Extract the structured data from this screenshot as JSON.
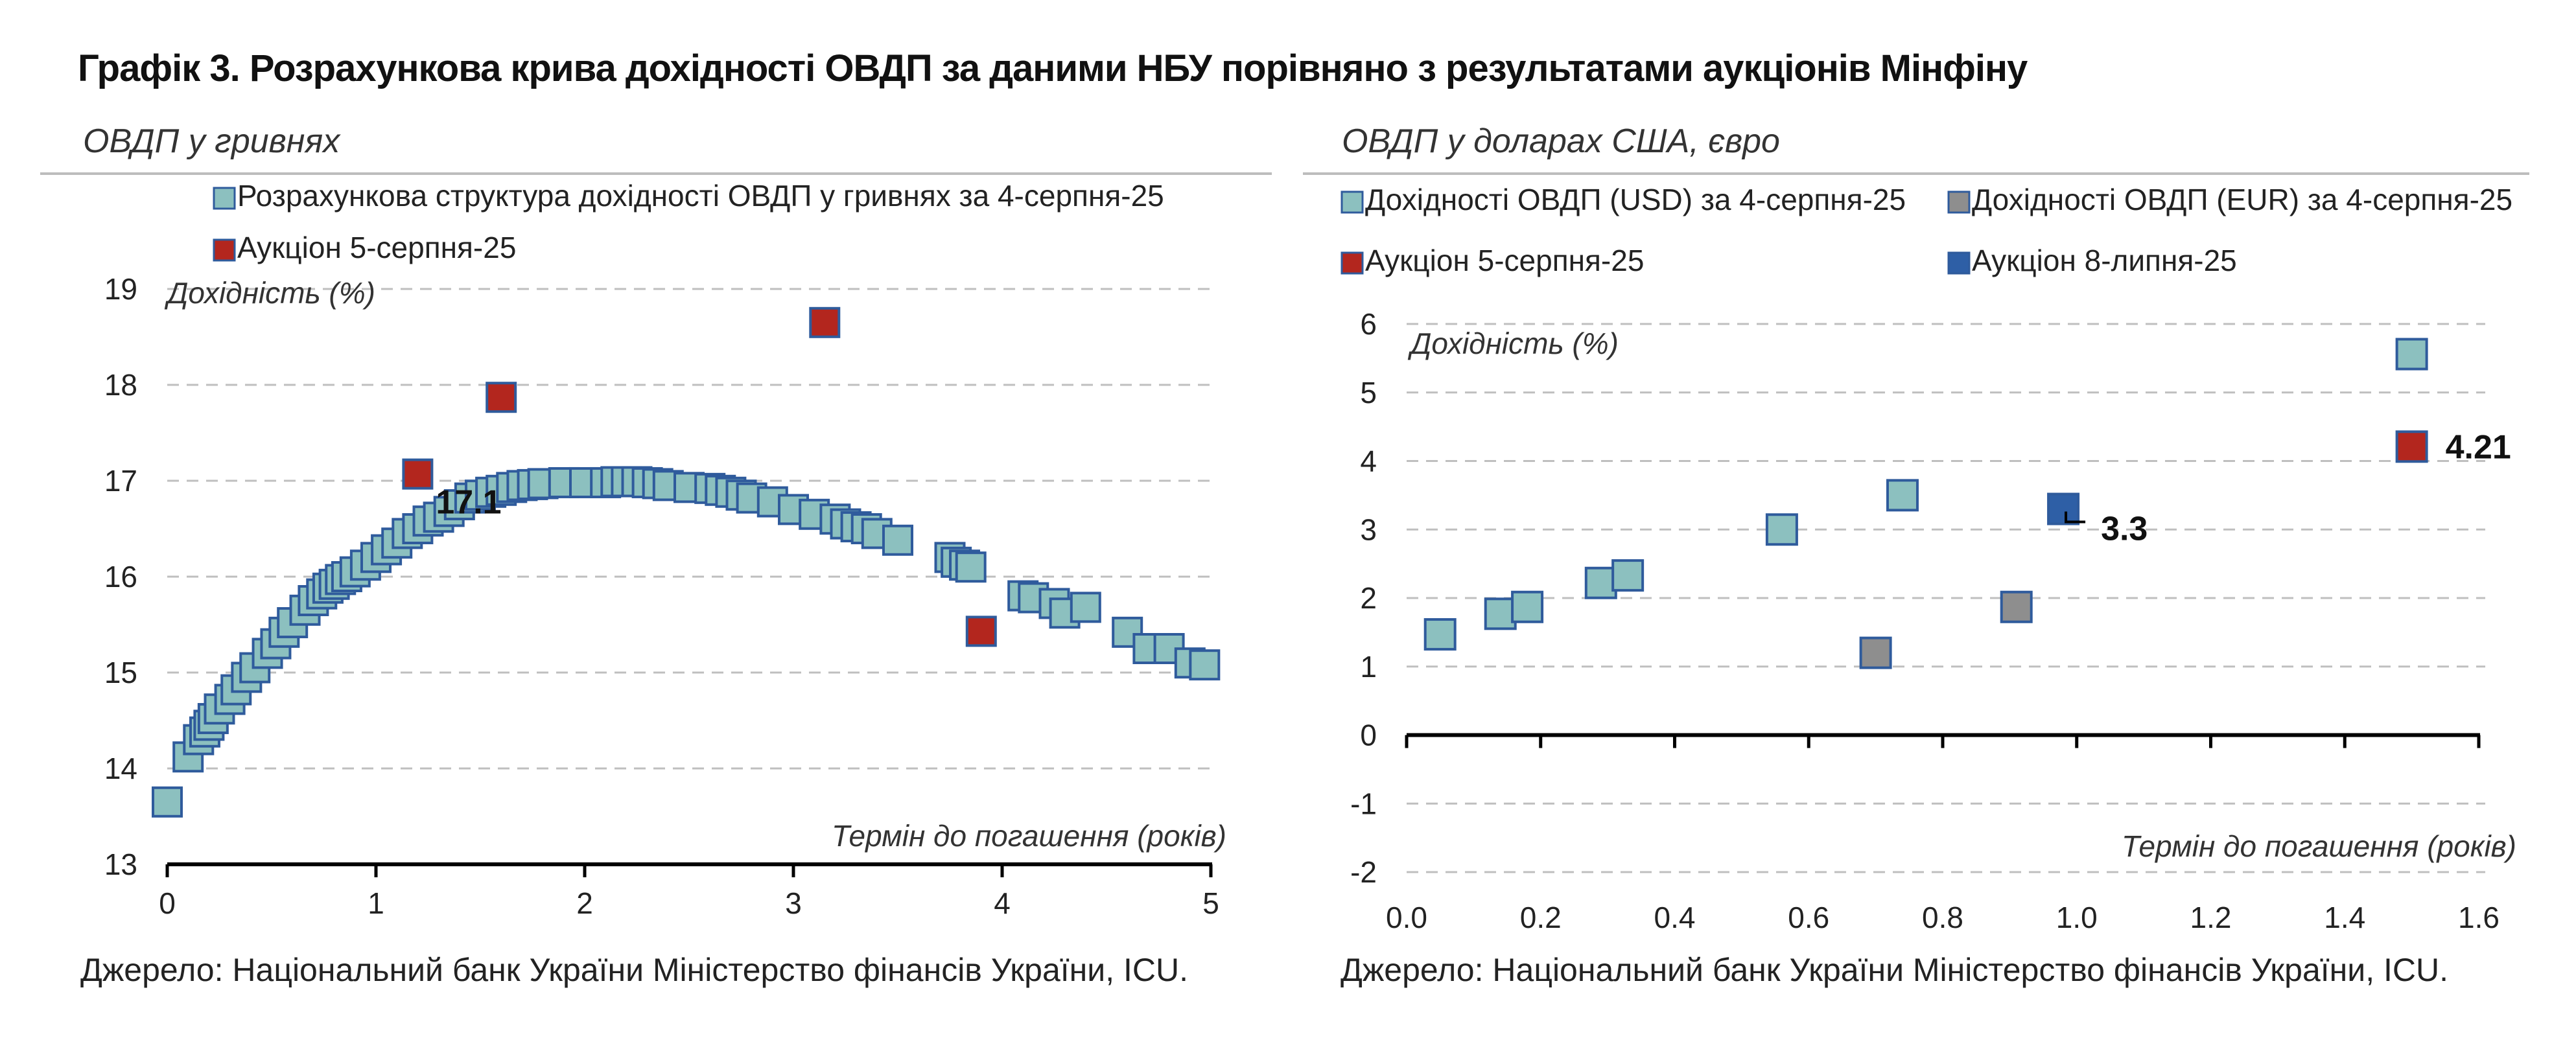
{
  "title": "Графік 3. Розрахункова крива дохідності ОВДП за даними НБУ порівняно з результатами аукціонів Мінфіну",
  "source_text": "Джерело: Національний банк України Міністерство фінансів України, ICU.",
  "colors": {
    "calc_fill": "#8cc0bf",
    "calc_stroke": "#2f5b9c",
    "auction_red": "#b3261e",
    "eur_grey": "#8e8e8e",
    "auction_blue": "#2e5fa6",
    "grid": "#bfbfbf"
  },
  "chart_data": [
    {
      "type": "scatter",
      "subtitle": "ОВДП у гривнях",
      "ylabel": "Дохідність (%)",
      "xlabel": "Термін до погашення (років)",
      "xlim": [
        0,
        5
      ],
      "ylim": [
        13,
        19
      ],
      "xticks": [
        "0",
        "1",
        "2",
        "3",
        "4",
        "5"
      ],
      "yticks": [
        "13",
        "14",
        "15",
        "16",
        "17",
        "18",
        "19"
      ],
      "grid": "horizontal dashed",
      "legend_position": "top",
      "annotations": [
        {
          "text": "17.1",
          "x": 1.2,
          "y": 17.05
        }
      ],
      "series": [
        {
          "name": "Розрахункова структура дохідності ОВДП у гривнях за 4-серпня-25",
          "color": "#8cc0bf",
          "x": [
            0.0,
            0.1,
            0.15,
            0.18,
            0.2,
            0.22,
            0.25,
            0.3,
            0.33,
            0.38,
            0.42,
            0.48,
            0.52,
            0.56,
            0.6,
            0.66,
            0.7,
            0.74,
            0.77,
            0.8,
            0.83,
            0.86,
            0.9,
            0.95,
            1.0,
            1.05,
            1.1,
            1.15,
            1.2,
            1.25,
            1.3,
            1.35,
            1.4,
            1.45,
            1.5,
            1.55,
            1.6,
            1.65,
            1.7,
            1.75,
            1.8,
            1.9,
            2.0,
            2.1,
            2.15,
            2.2,
            2.25,
            2.3,
            2.35,
            2.4,
            2.5,
            2.6,
            2.65,
            2.7,
            2.75,
            2.8,
            2.9,
            3.0,
            3.1,
            3.2,
            3.25,
            3.3,
            3.35,
            3.4,
            3.5,
            3.75,
            3.78,
            3.82,
            3.85,
            4.1,
            4.15,
            4.25,
            4.3,
            4.4,
            4.6,
            4.7,
            4.8,
            4.9,
            4.97
          ],
          "y": [
            13.65,
            14.12,
            14.3,
            14.38,
            14.45,
            14.52,
            14.62,
            14.72,
            14.82,
            14.95,
            15.05,
            15.2,
            15.3,
            15.42,
            15.52,
            15.65,
            15.75,
            15.82,
            15.88,
            15.92,
            15.97,
            16.0,
            16.05,
            16.12,
            16.2,
            16.28,
            16.35,
            16.45,
            16.5,
            16.58,
            16.62,
            16.68,
            16.75,
            16.82,
            16.85,
            16.88,
            16.9,
            16.93,
            16.95,
            16.96,
            16.97,
            16.98,
            16.98,
            16.98,
            16.99,
            16.99,
            16.99,
            16.98,
            16.97,
            16.95,
            16.93,
            16.92,
            16.9,
            16.88,
            16.85,
            16.82,
            16.78,
            16.7,
            16.65,
            16.6,
            16.55,
            16.52,
            16.5,
            16.45,
            16.38,
            16.2,
            16.15,
            16.12,
            16.1,
            15.8,
            15.78,
            15.72,
            15.62,
            15.68,
            15.42,
            15.25,
            15.25,
            15.1,
            15.08
          ]
        },
        {
          "name": "Аукціон 5-серпня-25",
          "color": "#b3261e",
          "x": [
            1.2,
            1.6,
            3.15,
            3.9
          ],
          "y": [
            17.07,
            17.87,
            18.65,
            15.43
          ]
        }
      ]
    },
    {
      "type": "scatter",
      "subtitle": "ОВДП у доларах США, євро",
      "ylabel": "Дохідність (%)",
      "xlabel": "Термін до погашення (років)",
      "xlim": [
        0,
        1.6
      ],
      "ylim": [
        -2,
        6
      ],
      "xticks": [
        "0.0",
        "0.2",
        "0.4",
        "0.6",
        "0.8",
        "1.0",
        "1.2",
        "1.4",
        "1.6"
      ],
      "yticks": [
        "-2",
        "-1",
        "0",
        "1",
        "2",
        "3",
        "4",
        "5",
        "6"
      ],
      "grid": "horizontal dashed",
      "legend_position": "top",
      "annotations": [
        {
          "text": "3.3",
          "x": 0.98,
          "y": 3.3
        },
        {
          "text": "4.21",
          "x": 1.5,
          "y": 4.21
        }
      ],
      "series": [
        {
          "name": "Дохідності ОВДП (USD) за 4-серпня-25",
          "color": "#8cc0bf",
          "x": [
            0.05,
            0.14,
            0.18,
            0.29,
            0.33,
            0.56,
            0.74,
            1.5
          ],
          "y": [
            1.47,
            1.77,
            1.87,
            2.22,
            2.33,
            3.0,
            3.5,
            5.56
          ]
        },
        {
          "name": "Дохідності ОВДП (EUR) за 4-серпня-25",
          "color": "#8e8e8e",
          "x": [
            0.7,
            0.91
          ],
          "y": [
            1.2,
            1.87
          ]
        },
        {
          "name": "Аукціон 5-серпня-25",
          "color": "#b3261e",
          "x": [
            1.5
          ],
          "y": [
            4.21
          ]
        },
        {
          "name": "Аукціон 8-липня-25",
          "color": "#2e5fa6",
          "x": [
            0.98
          ],
          "y": [
            3.3
          ]
        }
      ]
    }
  ]
}
